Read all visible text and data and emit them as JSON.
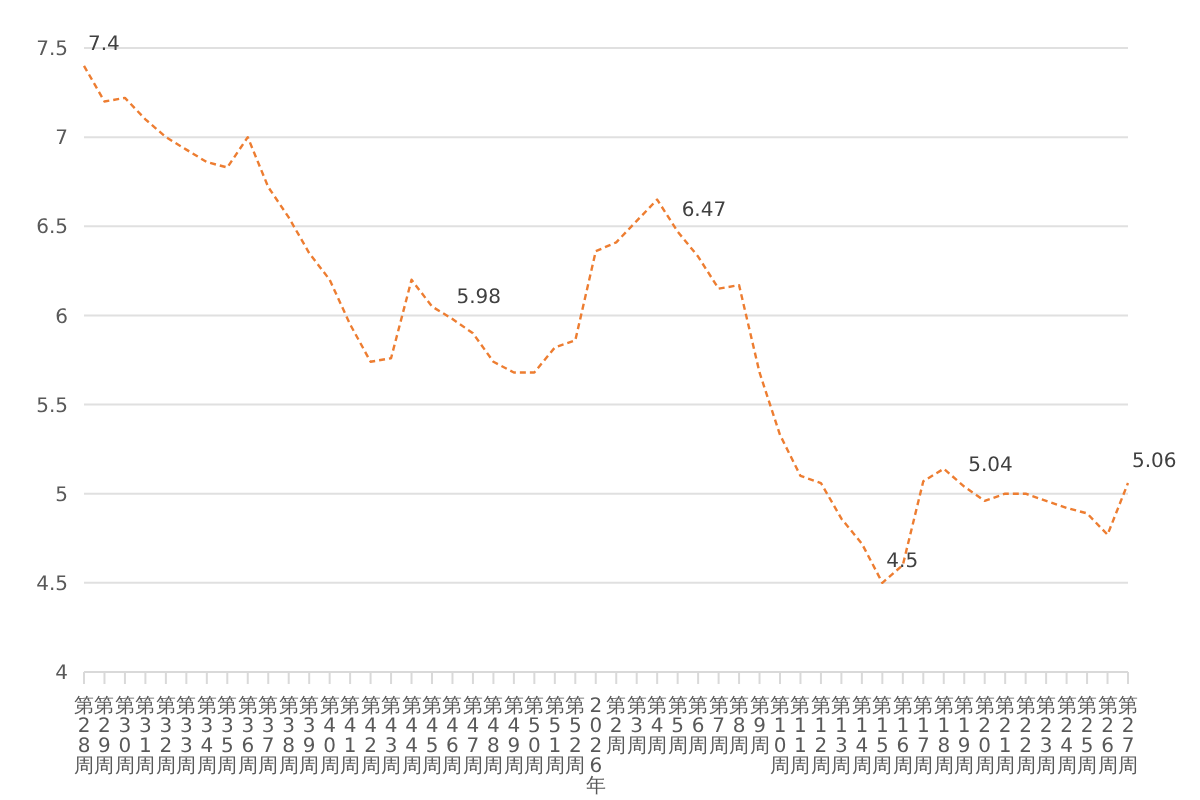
{
  "chart_data": {
    "type": "line",
    "categories": [
      "第28周",
      "第29周",
      "第30周",
      "第31周",
      "第32周",
      "第33周",
      "第34周",
      "第35周",
      "第36周",
      "第37周",
      "第38周",
      "第39周",
      "第40周",
      "第41周",
      "第42周",
      "第43周",
      "第44周",
      "第45周",
      "第46周",
      "第47周",
      "第48周",
      "第49周",
      "第50周",
      "第51周",
      "第52周",
      "2026年",
      "第2周",
      "第3周",
      "第4周",
      "第5周",
      "第6周",
      "第7周",
      "第8周",
      "第9周",
      "第10周",
      "第11周",
      "第12周",
      "第13周",
      "第14周",
      "第15周",
      "第16周",
      "第17周",
      "第18周",
      "第19周",
      "第20周",
      "第21周",
      "第22周",
      "第23周",
      "第24周",
      "第25周",
      "第26周",
      "第27周"
    ],
    "series": [
      {
        "color": "#ed7d31",
        "values": [
          7.4,
          7.2,
          7.22,
          7.1,
          7.0,
          6.93,
          6.86,
          6.83,
          7.0,
          6.72,
          6.55,
          6.35,
          6.2,
          5.95,
          5.74,
          5.76,
          6.2,
          6.05,
          5.98,
          5.9,
          5.74,
          5.68,
          5.68,
          5.82,
          5.86,
          6.36,
          6.41,
          6.53,
          6.65,
          6.47,
          6.33,
          6.15,
          6.17,
          5.68,
          5.33,
          5.1,
          5.06,
          4.86,
          4.72,
          4.5,
          4.6,
          5.07,
          5.14,
          5.04,
          4.96,
          5.0,
          5.0,
          4.96,
          4.92,
          4.89,
          4.77,
          5.06
        ],
        "value_labels": [
          "7.4",
          null,
          null,
          null,
          null,
          null,
          null,
          null,
          null,
          null,
          null,
          null,
          null,
          null,
          null,
          null,
          null,
          null,
          "5.98",
          null,
          null,
          null,
          null,
          null,
          null,
          null,
          null,
          null,
          null,
          "6.47",
          null,
          null,
          null,
          null,
          null,
          null,
          null,
          null,
          null,
          "4.5",
          null,
          null,
          null,
          "5.04",
          null,
          null,
          null,
          null,
          null,
          null,
          null,
          "5.06"
        ]
      }
    ],
    "ylim": [
      4,
      7.5
    ],
    "yticks": [
      4,
      4.5,
      5,
      5.5,
      6,
      6.5,
      7,
      7.5
    ],
    "grid": "y",
    "legend": false,
    "marker": "none",
    "line_style": "dashed"
  }
}
